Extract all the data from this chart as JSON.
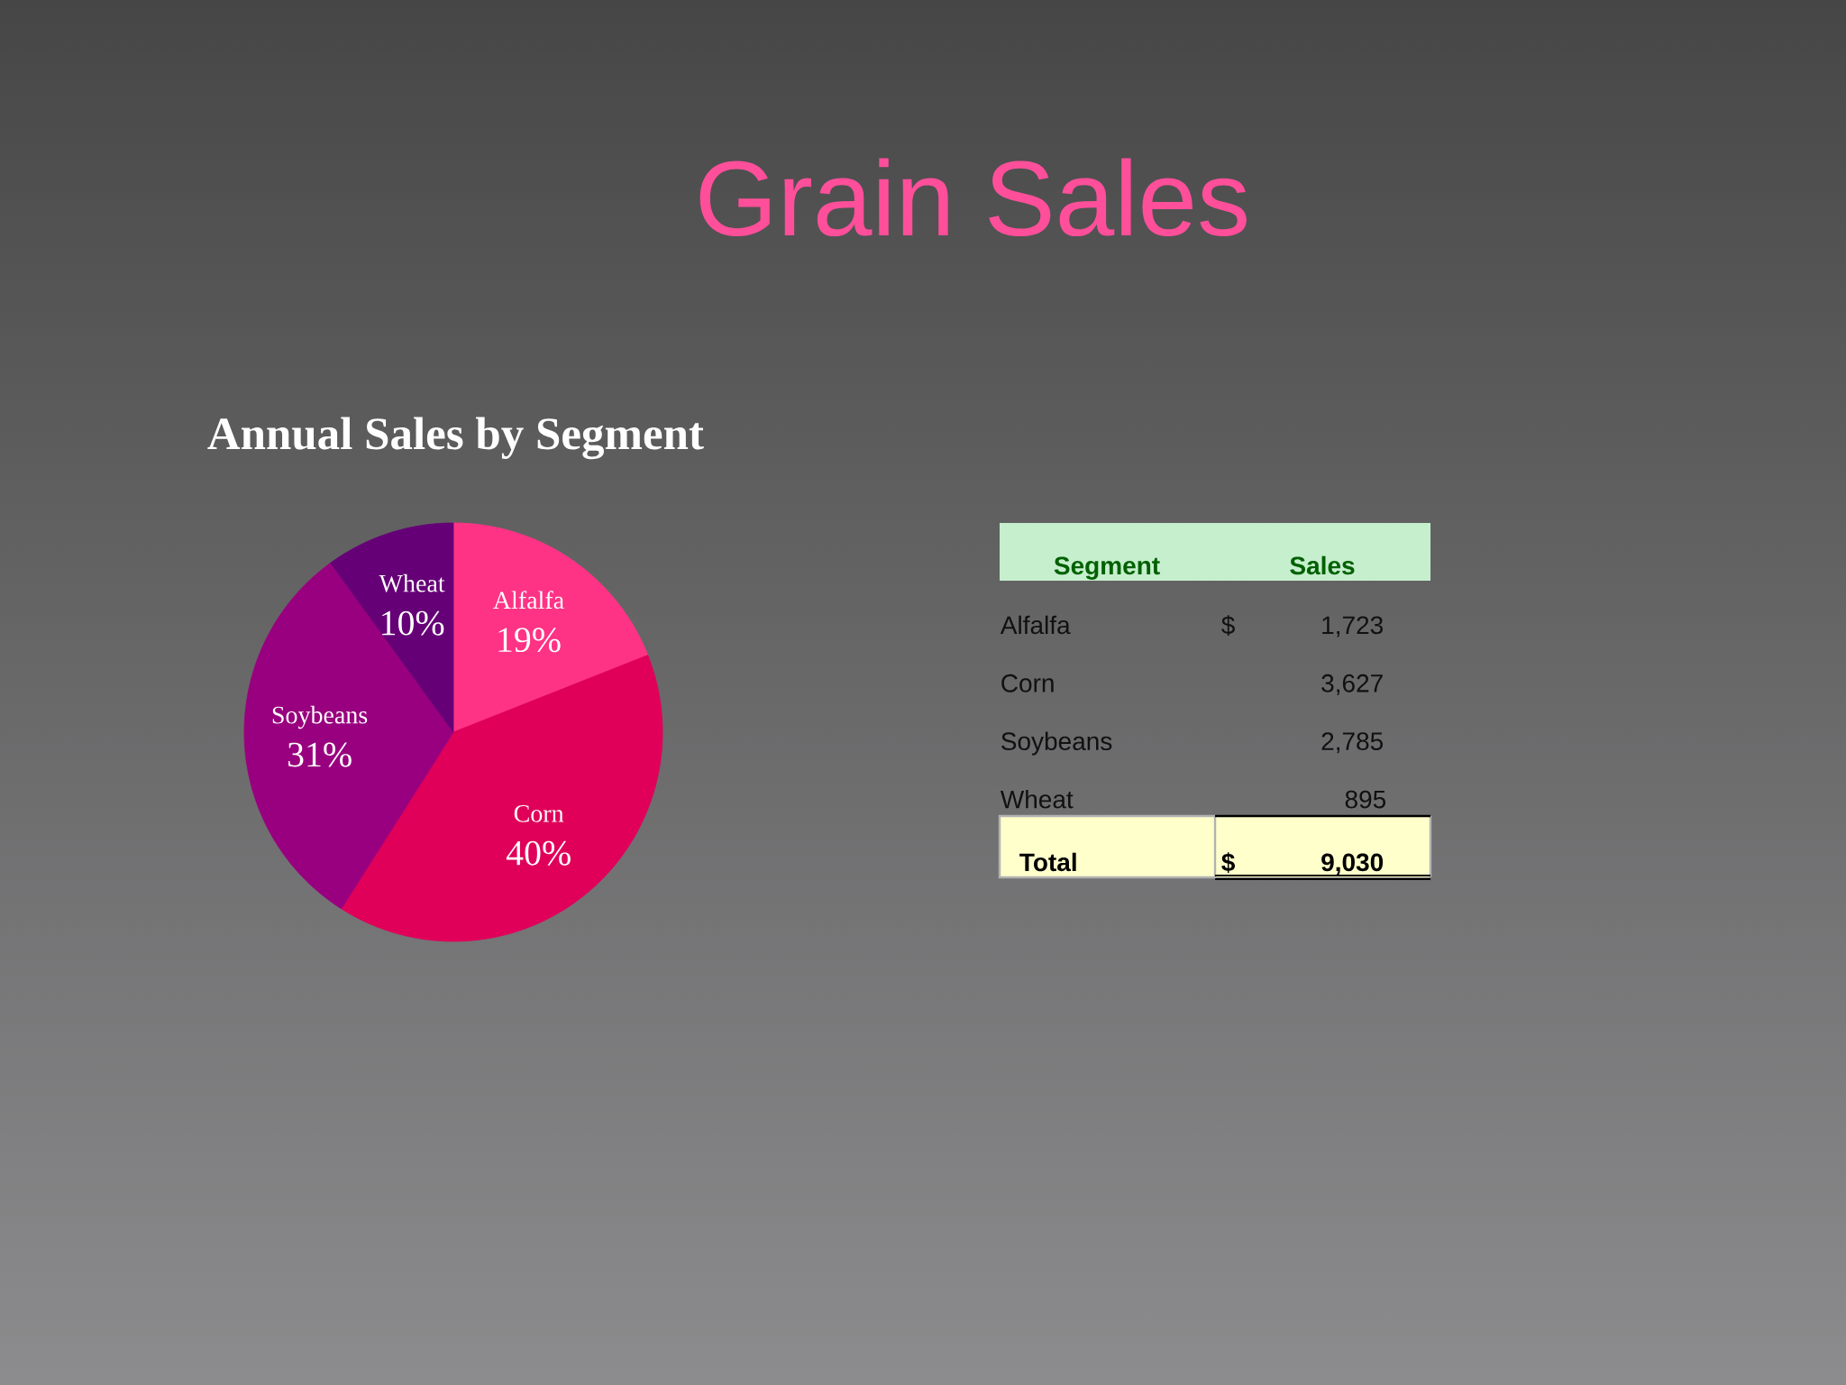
{
  "chart_data": {
    "type": "pie",
    "title": "Grain Sales",
    "subtitle": "Annual Sales by Segment",
    "categories": [
      "Alfalfa",
      "Corn",
      "Soybeans",
      "Wheat"
    ],
    "values": [
      19,
      40,
      31,
      10
    ],
    "colors": [
      "#ff3385",
      "#e0005a",
      "#99007f",
      "#660077"
    ],
    "value_labels": [
      "19%",
      "40%",
      "31%",
      "10%"
    ],
    "annotations": [
      "Segment",
      "Sales",
      "$",
      "1,723",
      "3,627",
      "2,785",
      "895",
      "Total",
      "$",
      "9,030"
    ]
  }
}
